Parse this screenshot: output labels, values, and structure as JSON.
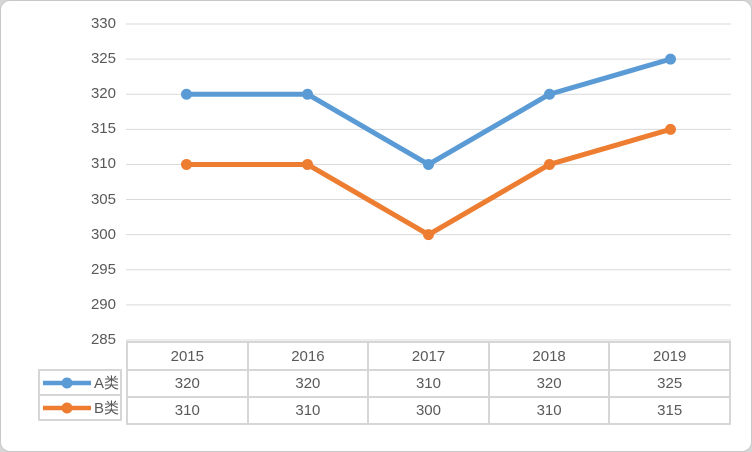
{
  "chart_data": {
    "type": "line",
    "title": "",
    "xlabel": "",
    "ylabel": "",
    "categories": [
      "2015",
      "2016",
      "2017",
      "2018",
      "2019"
    ],
    "series": [
      {
        "name": "A类",
        "color": "#5B9BD5",
        "values": [
          320,
          320,
          310,
          320,
          325
        ]
      },
      {
        "name": "B类",
        "color": "#ED7D31",
        "values": [
          310,
          310,
          300,
          310,
          315
        ]
      }
    ],
    "ylim": [
      285,
      330
    ],
    "yticks": [
      330,
      325,
      320,
      315,
      310,
      305,
      300,
      295,
      290,
      285
    ],
    "grid": "horizontal",
    "legend_position": "data-table-left-column",
    "marker": "circle"
  },
  "colors": {
    "page_background": "#D6D6D6",
    "card_background": "#FFFFFF",
    "card_border": "#C9C9C9",
    "gridline": "#D9D9D9",
    "table_border": "#D6D6D6",
    "text": "#595959"
  }
}
